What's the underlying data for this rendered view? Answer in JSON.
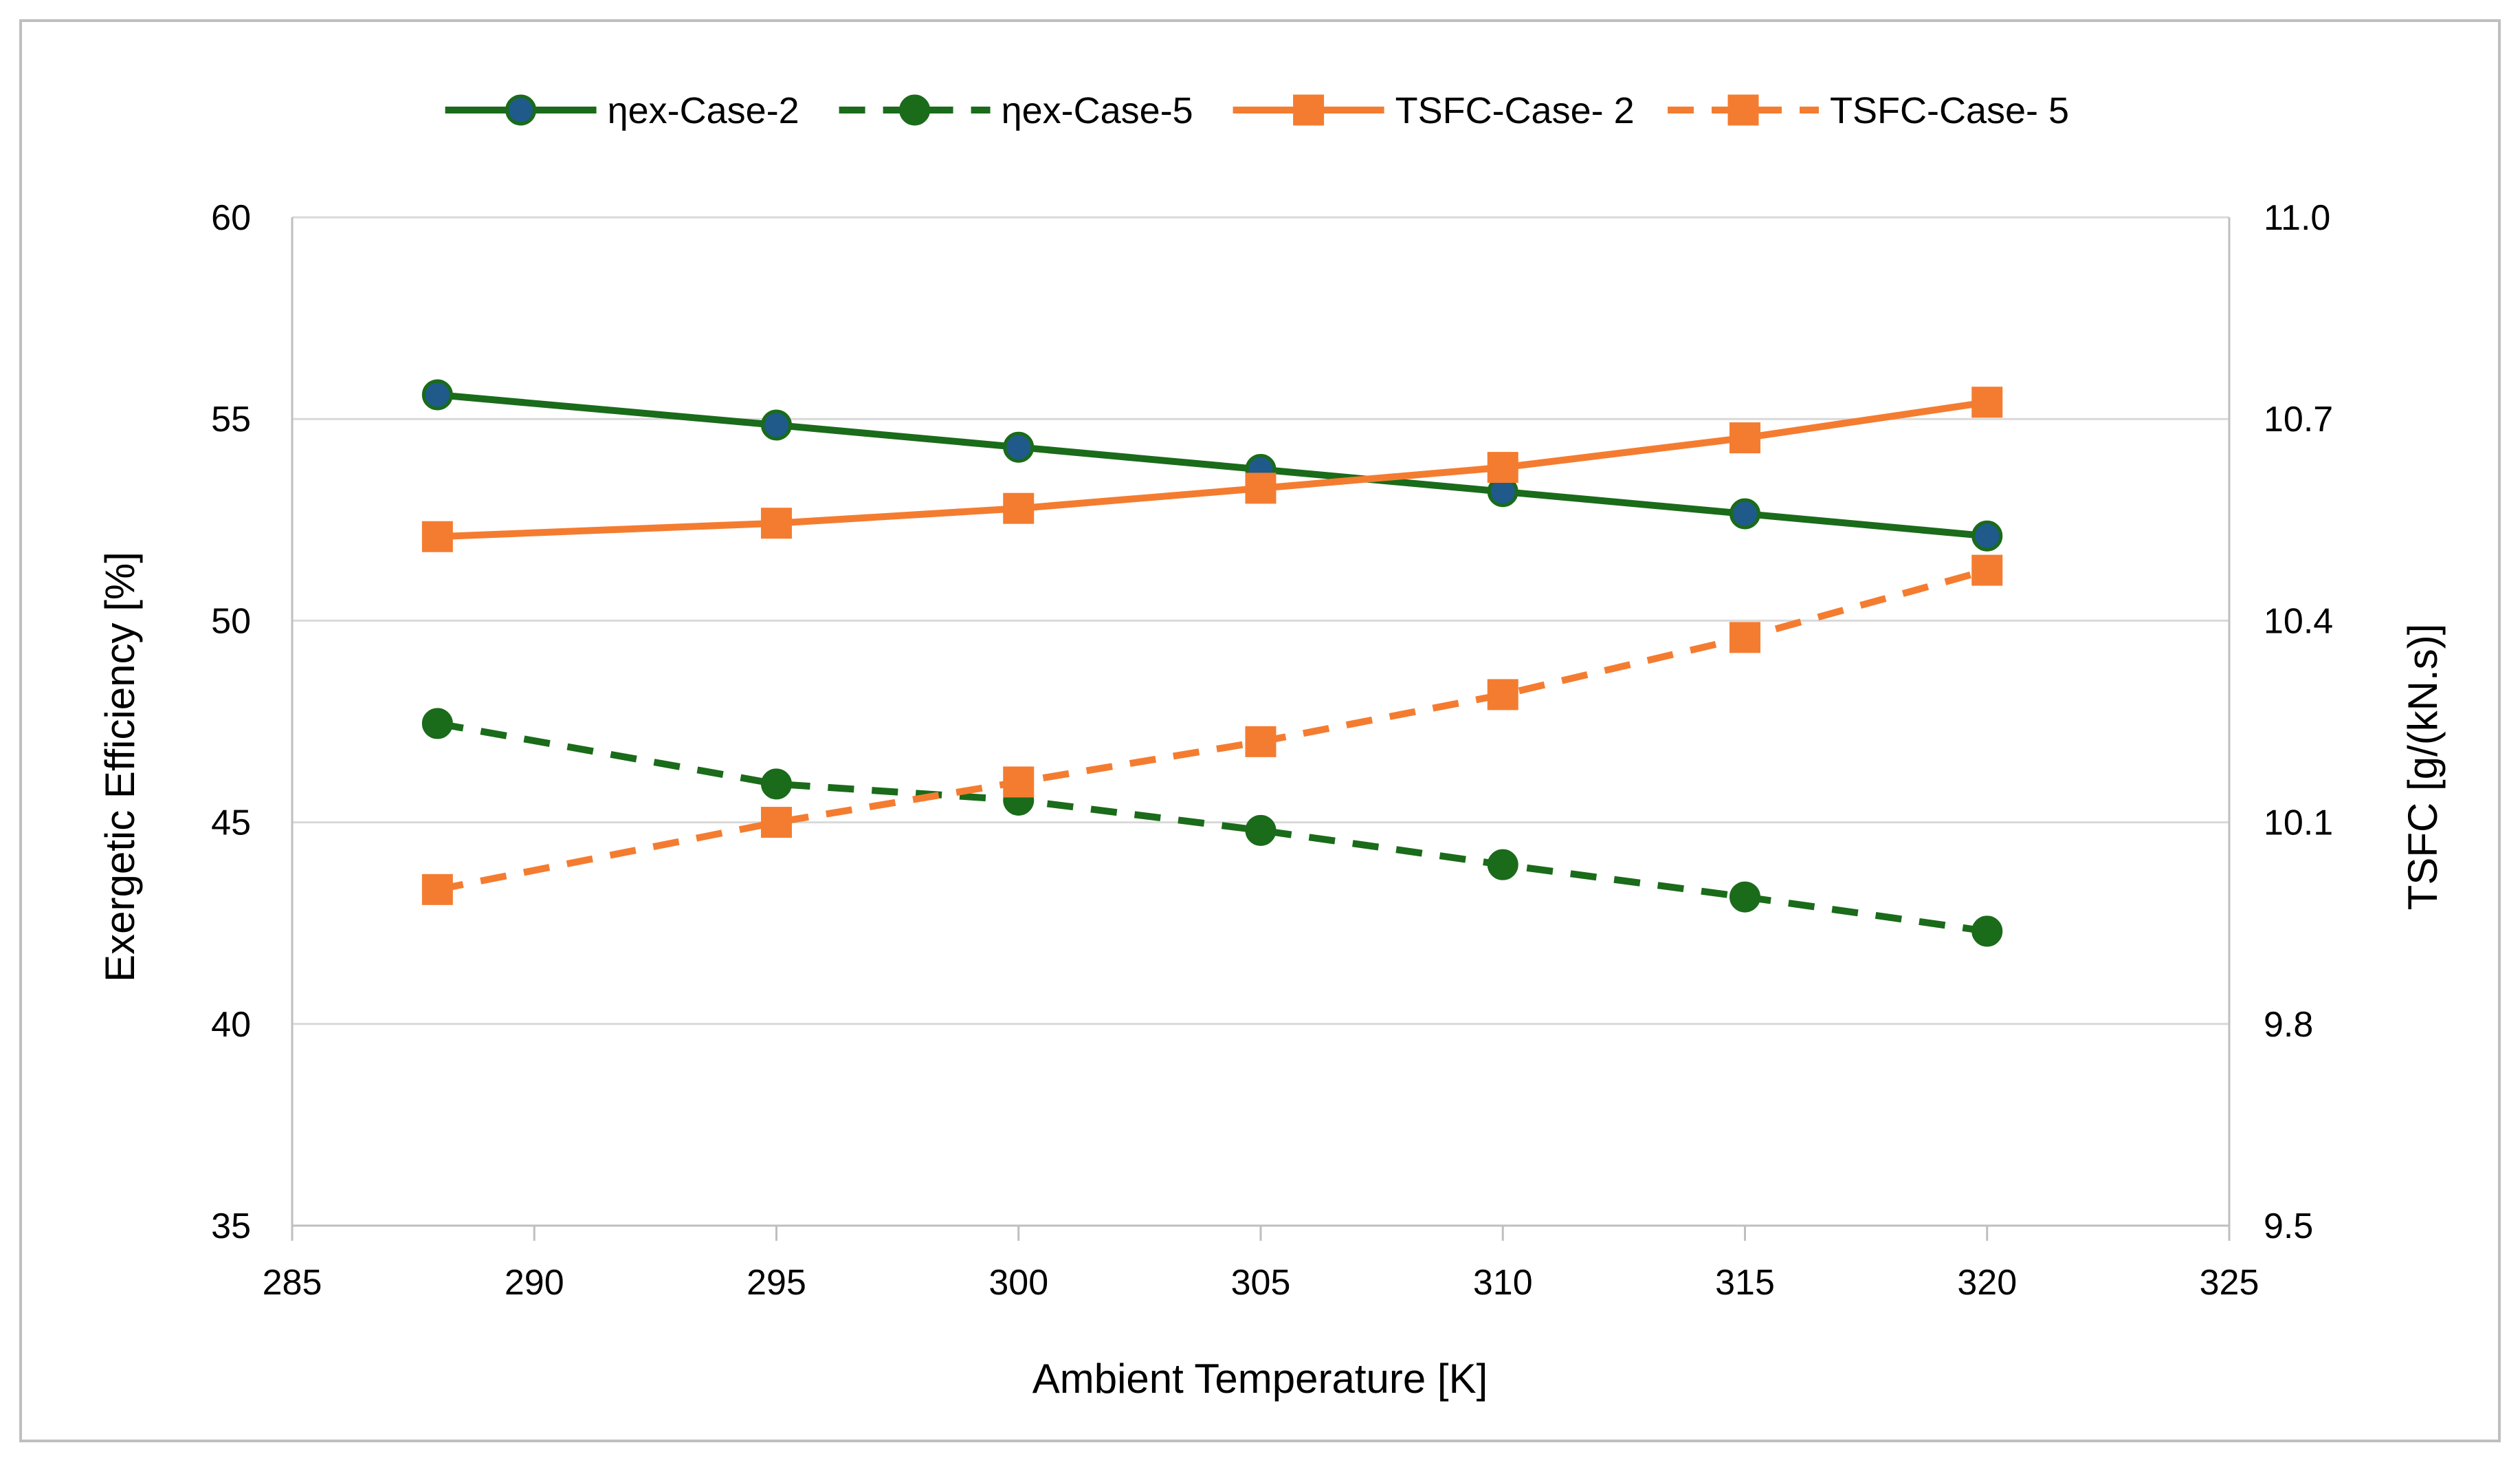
{
  "chart_data": {
    "type": "line",
    "title": "",
    "xlabel": "Ambient Temperature [K]",
    "ylabel_left": "Exergetic Efficiency [%]",
    "ylabel_right": "TSFC [g/(kN.s)]",
    "xlim": [
      285,
      325
    ],
    "xticks": [
      285,
      290,
      295,
      300,
      305,
      310,
      315,
      320,
      325
    ],
    "ylim_left": [
      35,
      60
    ],
    "yticks_left": [
      35,
      40,
      45,
      50,
      55,
      60
    ],
    "ylim_right": [
      9.5,
      11.0
    ],
    "yticks_right": [
      "9.5",
      "9.8",
      "10.1",
      "10.4",
      "10.7",
      "11.0"
    ],
    "grid": true,
    "legend_position": "top",
    "x": [
      288,
      295,
      300,
      305,
      310,
      315,
      320
    ],
    "series": [
      {
        "name": "ηex-Case-2",
        "axis": "left",
        "style": "solid",
        "marker": "circle",
        "color": "#1a6b1a",
        "marker_fill": "#1f5a8a",
        "values": [
          55.6,
          54.85,
          54.3,
          53.75,
          53.2,
          52.65,
          52.1
        ]
      },
      {
        "name": "ηex-Case-5",
        "axis": "left",
        "style": "dashed",
        "marker": "circle",
        "color": "#1a6b1a",
        "marker_fill": "#1a6b1a",
        "values": [
          47.45,
          45.95,
          45.55,
          44.8,
          43.95,
          43.15,
          42.3
        ]
      },
      {
        "name": "TSFC-Case- 2",
        "axis": "right",
        "style": "solid",
        "marker": "square",
        "color": "#f47c30",
        "marker_fill": "#f47c30",
        "values": [
          10.525,
          10.545,
          10.567,
          10.597,
          10.628,
          10.672,
          10.725
        ]
      },
      {
        "name": "TSFC-Case- 5",
        "axis": "right",
        "style": "dashed",
        "marker": "square",
        "color": "#f47c30",
        "marker_fill": "#f47c30",
        "values": [
          10.0,
          10.1,
          10.16,
          10.22,
          10.29,
          10.375,
          10.475
        ]
      }
    ]
  }
}
